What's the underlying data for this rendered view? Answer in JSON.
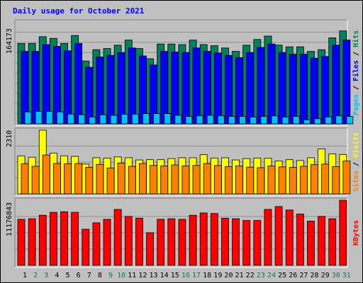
{
  "chart_data": {
    "type": "bar",
    "title": "Daily usage for October 2021",
    "x": [
      "1",
      "2",
      "3",
      "4",
      "5",
      "6",
      "7",
      "8",
      "9",
      "10",
      "11",
      "12",
      "13",
      "14",
      "15",
      "16",
      "17",
      "18",
      "19",
      "20",
      "21",
      "22",
      "23",
      "24",
      "25",
      "26",
      "27",
      "28",
      "29",
      "30",
      "31"
    ],
    "weekend_days": [
      "2",
      "3",
      "9",
      "10",
      "16",
      "17",
      "23",
      "24",
      "30",
      "31"
    ],
    "panels": [
      {
        "name": "hits-files-pages",
        "max_label": "164173",
        "ylim": [
          0,
          180000
        ],
        "side_labels": [
          {
            "text": "Pages",
            "color": "#00c0ff"
          },
          {
            "text": "Files",
            "color": "#0000ff"
          },
          {
            "text": "Hits",
            "color": "#00805c"
          }
        ],
        "series": [
          {
            "name": "Hits",
            "color": "#00805c",
            "values": [
              142000,
              142000,
              154000,
              151000,
              142000,
              156000,
              111000,
              131000,
              133000,
              139000,
              148000,
              133000,
              115000,
              141000,
              141000,
              140000,
              148000,
              140000,
              138000,
              134000,
              128000,
              139000,
              149000,
              155000,
              139000,
              136000,
              136000,
              128000,
              131000,
              152000,
              164173
            ]
          },
          {
            "name": "Files",
            "color": "#0000ff",
            "values": [
              128000,
              128000,
              140000,
              137000,
              129000,
              142000,
              100000,
              118000,
              121000,
              126000,
              134000,
              120000,
              104000,
              128000,
              127000,
              126000,
              134000,
              128000,
              125000,
              121000,
              117000,
              126000,
              135000,
              141000,
              126000,
              123000,
              123000,
              116000,
              119000,
              139000,
              148000
            ]
          },
          {
            "name": "Pages",
            "color": "#00c0ff",
            "values": [
              21000,
              22000,
              22000,
              21000,
              17000,
              16000,
              12000,
              16000,
              15000,
              17000,
              17000,
              18000,
              18000,
              18000,
              15000,
              13000,
              14000,
              15000,
              14000,
              13000,
              13000,
              12000,
              13000,
              14000,
              12000,
              13000,
              7000,
              9000,
              12000,
              14000,
              13000
            ]
          }
        ]
      },
      {
        "name": "visits-sites",
        "max_label": "2310",
        "ylim": [
          0,
          2310
        ],
        "side_labels": [
          {
            "text": "Sites",
            "color": "#ff8000"
          },
          {
            "text": "Visits",
            "color": "#ffff00"
          }
        ],
        "series": [
          {
            "name": "Visits",
            "color": "#ffff00",
            "values": [
              1380,
              1330,
              2310,
              1480,
              1380,
              1360,
              1080,
              1310,
              1300,
              1340,
              1310,
              1230,
              1240,
              1240,
              1280,
              1310,
              1310,
              1420,
              1300,
              1310,
              1230,
              1280,
              1300,
              1290,
              1190,
              1240,
              1210,
              1310,
              1630,
              1450,
              1430
            ]
          },
          {
            "name": "Sites",
            "color": "#ff8000",
            "values": [
              1090,
              1000,
              1410,
              1100,
              1090,
              1100,
              960,
              1070,
              940,
              1120,
              1000,
              1100,
              1030,
              1010,
              1050,
              1010,
              1030,
              1100,
              1030,
              990,
              1010,
              970,
              950,
              1010,
              980,
              960,
              1000,
              1060,
              1080,
              990,
              1190
            ]
          }
        ]
      },
      {
        "name": "kbytes",
        "max_label": "11176843",
        "ylim": [
          0,
          11176843
        ],
        "side_labels": [
          {
            "text": "KBytes",
            "color": "#ff0000"
          }
        ],
        "series": [
          {
            "name": "KBytes",
            "color": "#ff0000",
            "values": [
              7900000,
              8000000,
              8600000,
              9100000,
              9200000,
              9100000,
              6200000,
              7300000,
              7900000,
              9600000,
              8400000,
              8100000,
              5600000,
              7900000,
              8000000,
              7900000,
              8600000,
              9000000,
              8900000,
              8100000,
              8000000,
              7700000,
              7700000,
              9600000,
              10100000,
              9500000,
              8800000,
              7600000,
              8400000,
              8000000,
              11176843
            ]
          }
        ]
      }
    ]
  }
}
